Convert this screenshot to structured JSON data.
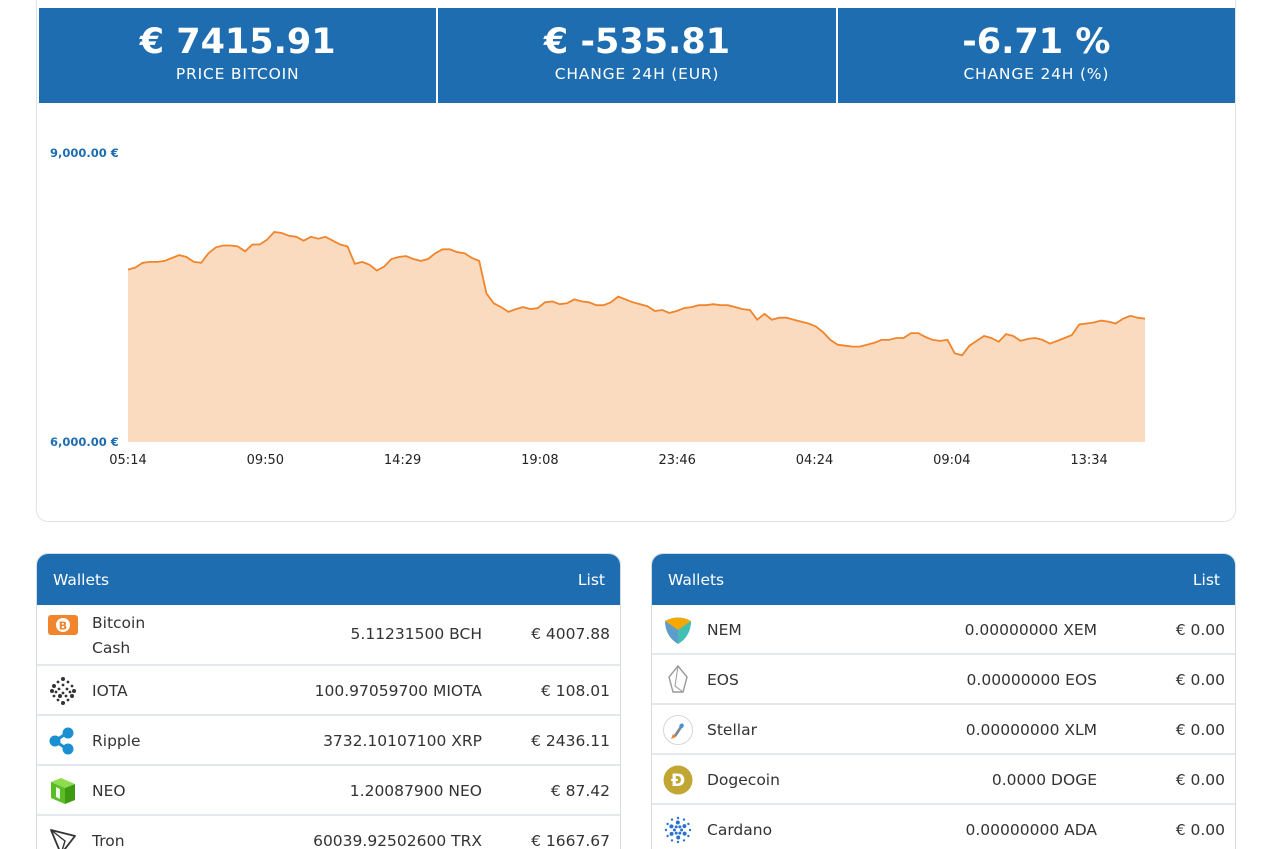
{
  "stats": [
    {
      "value": "€ 7415.91",
      "label": "PRICE BITCOIN"
    },
    {
      "value": "€ -535.81",
      "label": "CHANGE 24H (EUR)"
    },
    {
      "value": "-6.71 %",
      "label": "CHANGE 24H (%)"
    }
  ],
  "chart_data": {
    "type": "area",
    "title": "",
    "xlabel": "",
    "ylabel": "",
    "ylim": [
      6000,
      9000
    ],
    "y_tick_labels": [
      "9,000.00 €",
      "6,000.00 €"
    ],
    "x_tick_labels": [
      "05:14",
      "09:50",
      "14:29",
      "19:08",
      "23:46",
      "04:24",
      "09:04",
      "13:34"
    ],
    "series": [
      {
        "color": "#f0852d",
        "fill": "#fadbbf",
        "values": [
          7790,
          7810,
          7860,
          7870,
          7870,
          7880,
          7910,
          7940,
          7920,
          7870,
          7860,
          7960,
          8020,
          8040,
          8040,
          8030,
          7980,
          8050,
          8050,
          8100,
          8180,
          8170,
          8140,
          8130,
          8090,
          8130,
          8110,
          8130,
          8090,
          8050,
          8030,
          7850,
          7870,
          7840,
          7780,
          7820,
          7900,
          7920,
          7930,
          7900,
          7880,
          7900,
          7960,
          8000,
          8000,
          7970,
          7960,
          7910,
          7880,
          7540,
          7440,
          7400,
          7350,
          7380,
          7400,
          7380,
          7390,
          7450,
          7460,
          7430,
          7440,
          7480,
          7460,
          7450,
          7420,
          7420,
          7450,
          7510,
          7480,
          7450,
          7430,
          7410,
          7360,
          7370,
          7340,
          7360,
          7390,
          7400,
          7420,
          7420,
          7430,
          7420,
          7420,
          7400,
          7380,
          7370,
          7270,
          7330,
          7270,
          7290,
          7290,
          7270,
          7250,
          7230,
          7200,
          7140,
          7060,
          7010,
          7000,
          6990,
          6990,
          7010,
          7030,
          7060,
          7060,
          7080,
          7080,
          7130,
          7130,
          7090,
          7060,
          7050,
          7060,
          6920,
          6900,
          7000,
          7050,
          7100,
          7080,
          7040,
          7120,
          7100,
          7050,
          7070,
          7080,
          7060,
          7020,
          7050,
          7080,
          7110,
          7220,
          7230,
          7240,
          7260,
          7250,
          7230,
          7280,
          7310,
          7290,
          7280
        ]
      }
    ]
  },
  "wallets_left": {
    "title": "Wallets",
    "link": "List",
    "rows": [
      {
        "name": "Bitcoin Cash",
        "icon": "bitcoin-cash-icon",
        "color": "#f0852d",
        "amount": "5.11231500 BCH",
        "value": "€ 4007.88"
      },
      {
        "name": "IOTA",
        "icon": "iota-icon",
        "color": "#333333",
        "amount": "100.97059700 MIOTA",
        "value": "€ 108.01"
      },
      {
        "name": "Ripple",
        "icon": "ripple-icon",
        "color": "#1a8fd1",
        "amount": "3732.10107100 XRP",
        "value": "€ 2436.11"
      },
      {
        "name": "NEO",
        "icon": "neo-icon",
        "color": "#58be23",
        "amount": "1.20087900 NEO",
        "value": "€ 87.42"
      },
      {
        "name": "Tron",
        "icon": "tron-icon",
        "color": "#333333",
        "amount": "60039.92502600 TRX",
        "value": "€ 1667.67"
      }
    ]
  },
  "wallets_right": {
    "title": "Wallets",
    "link": "List",
    "rows": [
      {
        "name": "NEM",
        "icon": "nem-icon",
        "color": "#41bfb3",
        "amount": "0.00000000 XEM",
        "value": "€ 0.00"
      },
      {
        "name": "EOS",
        "icon": "eos-icon",
        "color": "#999999",
        "amount": "0.00000000 EOS",
        "value": "€ 0.00"
      },
      {
        "name": "Stellar",
        "icon": "stellar-icon",
        "color": "#f0852d",
        "amount": "0.00000000 XLM",
        "value": "€ 0.00"
      },
      {
        "name": "Dogecoin",
        "icon": "dogecoin-icon",
        "color": "#c2a633",
        "amount": "0.0000 DOGE",
        "value": "€ 0.00"
      },
      {
        "name": "Cardano",
        "icon": "cardano-icon",
        "color": "#2a71d0",
        "amount": "0.00000000 ADA",
        "value": "€ 0.00"
      }
    ]
  }
}
